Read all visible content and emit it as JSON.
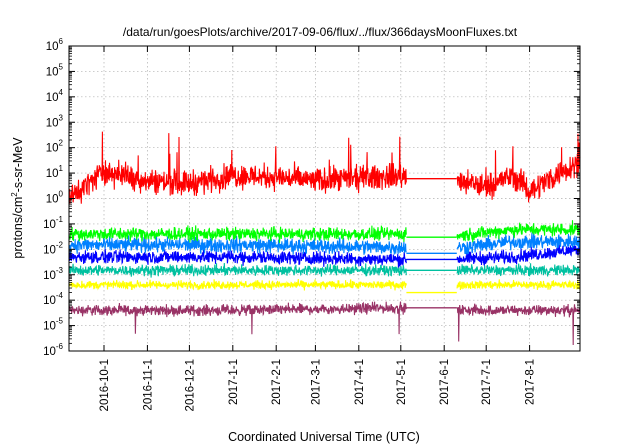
{
  "chart_data": {
    "type": "line",
    "title": "/data/run/goesPlots/archive/2017-09-06/flux/../flux/366daysMoonFluxes.txt",
    "xlabel": "Coordinated Universal Time (UTC)",
    "ylabel": {
      "base": "protons/cm",
      "exp": "2",
      "rest": "-s-sr-MeV"
    },
    "yscale": "log",
    "ylim": [
      1e-06,
      1000000.0
    ],
    "xlim": [
      "2016-09-06",
      "2017-09-06"
    ],
    "grid": true,
    "y_ticks": [
      {
        "exp": "-6",
        "value": 1e-06
      },
      {
        "exp": "-5",
        "value": 1e-05
      },
      {
        "exp": "-4",
        "value": 0.0001
      },
      {
        "exp": "-3",
        "value": 0.001
      },
      {
        "exp": "-2",
        "value": 0.01
      },
      {
        "exp": "-1",
        "value": 0.1
      },
      {
        "exp": "0",
        "value": 1
      },
      {
        "exp": "1",
        "value": 10
      },
      {
        "exp": "2",
        "value": 100
      },
      {
        "exp": "3",
        "value": 1000.0
      },
      {
        "exp": "4",
        "value": 10000.0
      },
      {
        "exp": "5",
        "value": 100000.0
      },
      {
        "exp": "6",
        "value": 1000000.0
      }
    ],
    "x_ticks": [
      "2016-10-1",
      "2016-11-1",
      "2016-12-1",
      "2017-1-1",
      "2017-2-1",
      "2017-3-1",
      "2017-4-1",
      "2017-5-1",
      "2017-6-1",
      "2017-7-1",
      "2017-8-1"
    ],
    "series": [
      {
        "color": "#ff0000",
        "gap_value": 6,
        "x": [
          "2016-09-06",
          "2016-10-01",
          "2016-11-01",
          "2016-12-01",
          "2017-01-01",
          "2017-02-01",
          "2017-03-01",
          "2017-04-01",
          "2017-05-01",
          "2017-06-01",
          "2017-07-01",
          "2017-07-20",
          "2017-08-01",
          "2017-09-06"
        ],
        "y": [
          1,
          12,
          5,
          4,
          8,
          7,
          5,
          6,
          8,
          5,
          3,
          8,
          2,
          30
        ]
      },
      {
        "color": "#00ff00",
        "gap_value": 0.03,
        "x": [
          "2016-09-06",
          "2017-01-01",
          "2017-05-01",
          "2017-06-01",
          "2017-07-20",
          "2017-09-06"
        ],
        "y": [
          0.04,
          0.04,
          0.04,
          0.03,
          0.06,
          0.06
        ]
      },
      {
        "color": "#0080ff",
        "gap_value": 0.007,
        "x": [
          "2016-09-06",
          "2017-01-01",
          "2017-05-01",
          "2017-06-01",
          "2017-07-20",
          "2017-09-06"
        ],
        "y": [
          0.015,
          0.015,
          0.012,
          0.01,
          0.02,
          0.02
        ]
      },
      {
        "color": "#0000ff",
        "gap_value": 0.004,
        "x": [
          "2016-09-06",
          "2017-01-01",
          "2017-05-01",
          "2017-06-01",
          "2017-07-20",
          "2017-09-06"
        ],
        "y": [
          0.005,
          0.005,
          0.004,
          0.004,
          0.005,
          0.01
        ]
      },
      {
        "color": "#00c0a0",
        "gap_value": 0.0015,
        "x": [
          "2016-09-06",
          "2017-01-01",
          "2017-05-01",
          "2017-06-01",
          "2017-09-06"
        ],
        "y": [
          0.0015,
          0.0015,
          0.0015,
          0.0015,
          0.0015
        ]
      },
      {
        "color": "#ffff00",
        "gap_value": 0.0002,
        "x": [
          "2016-09-06",
          "2017-01-01",
          "2017-05-01",
          "2017-06-01",
          "2017-09-06"
        ],
        "y": [
          0.0004,
          0.0004,
          0.0004,
          0.0004,
          0.0004
        ]
      },
      {
        "color": "#993366",
        "gap_value": 5e-05,
        "x": [
          "2016-09-06",
          "2017-01-01",
          "2017-05-01",
          "2017-06-01",
          "2017-09-06"
        ],
        "y": [
          4e-05,
          4e-05,
          5e-05,
          4e-05,
          4e-05
        ]
      }
    ],
    "data_gap": [
      "2017-05-05",
      "2017-06-10"
    ]
  }
}
